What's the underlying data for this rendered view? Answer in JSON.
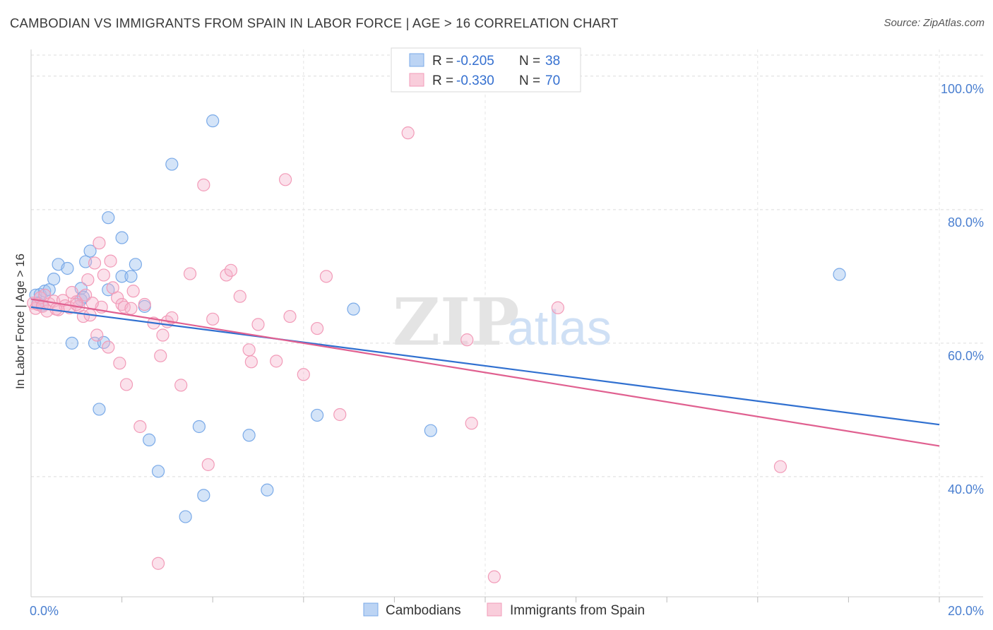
{
  "title": "CAMBODIAN VS IMMIGRANTS FROM SPAIN IN LABOR FORCE | AGE > 16 CORRELATION CHART",
  "source": "Source: ZipAtlas.com",
  "watermark": {
    "zip": "ZIP",
    "atlas": "atlas"
  },
  "legend": {
    "rows": [
      {
        "r_label": "R =",
        "r_value": "-0.205",
        "n_label": "N =",
        "n_value": "38"
      },
      {
        "r_label": "R =",
        "r_value": "-0.330",
        "n_label": "N =",
        "n_value": "70"
      }
    ]
  },
  "chart_data": {
    "type": "scatter",
    "title": "CAMBODIAN VS IMMIGRANTS FROM SPAIN IN LABOR FORCE | AGE > 16 CORRELATION CHART",
    "xlabel": "",
    "ylabel": "In Labor Force | Age > 16",
    "xlim": [
      0,
      20
    ],
    "ylim": [
      22,
      104
    ],
    "x_tick_labels": [
      {
        "value": 0,
        "label": "0.0%"
      },
      {
        "value": 20,
        "label": "20.0%"
      }
    ],
    "y_tick_labels": [
      {
        "value": 40,
        "label": "40.0%"
      },
      {
        "value": 60,
        "label": "60.0%"
      },
      {
        "value": 80,
        "label": "80.0%"
      },
      {
        "value": 100,
        "label": "100.0%"
      }
    ],
    "grid": true,
    "legend_position": "top-center",
    "colors": {
      "cambodians": "#7aaae8",
      "spain": "#f29bb8",
      "cambodians_line": "#3070d0",
      "spain_line": "#e06090"
    },
    "series": [
      {
        "name": "Cambodians",
        "r": -0.205,
        "n": 38,
        "trend": {
          "x0": 0,
          "y0": 65.4,
          "x1": 20,
          "y1": 47.8
        },
        "points": [
          [
            0.1,
            67.2
          ],
          [
            0.2,
            67.3
          ],
          [
            0.3,
            67.8
          ],
          [
            0.4,
            68.0
          ],
          [
            0.5,
            69.6
          ],
          [
            0.6,
            71.8
          ],
          [
            0.8,
            71.2
          ],
          [
            0.9,
            60.0
          ],
          [
            1.1,
            68.2
          ],
          [
            1.1,
            66.5
          ],
          [
            1.2,
            72.2
          ],
          [
            1.3,
            73.8
          ],
          [
            1.4,
            60.0
          ],
          [
            1.5,
            50.1
          ],
          [
            1.6,
            60.1
          ],
          [
            1.7,
            78.8
          ],
          [
            1.7,
            68.0
          ],
          [
            2.0,
            75.8
          ],
          [
            2.0,
            70.0
          ],
          [
            2.2,
            70.0
          ],
          [
            2.3,
            71.8
          ],
          [
            2.5,
            65.5
          ],
          [
            2.6,
            45.5
          ],
          [
            2.8,
            40.8
          ],
          [
            3.1,
            86.8
          ],
          [
            3.4,
            34.0
          ],
          [
            3.7,
            47.5
          ],
          [
            3.8,
            37.2
          ],
          [
            4.0,
            93.3
          ],
          [
            4.8,
            46.2
          ],
          [
            5.2,
            38.0
          ],
          [
            6.3,
            49.2
          ],
          [
            7.1,
            65.1
          ],
          [
            8.8,
            46.9
          ],
          [
            17.8,
            70.3
          ],
          [
            0.15,
            66.0
          ],
          [
            0.25,
            65.7
          ],
          [
            1.15,
            66.9
          ]
        ]
      },
      {
        "name": "Immigrants from Spain",
        "r": -0.33,
        "n": 70,
        "trend": {
          "x0": 0,
          "y0": 66.6,
          "x1": 20,
          "y1": 44.6
        },
        "points": [
          [
            0.05,
            66.0
          ],
          [
            0.1,
            65.2
          ],
          [
            0.15,
            65.8
          ],
          [
            0.2,
            66.8
          ],
          [
            0.25,
            65.5
          ],
          [
            0.3,
            67.2
          ],
          [
            0.35,
            64.8
          ],
          [
            0.4,
            65.9
          ],
          [
            0.5,
            66.3
          ],
          [
            0.6,
            65.0
          ],
          [
            0.7,
            66.4
          ],
          [
            0.75,
            65.6
          ],
          [
            0.85,
            65.3
          ],
          [
            0.9,
            67.6
          ],
          [
            1.0,
            66.2
          ],
          [
            1.05,
            65.5
          ],
          [
            1.15,
            64.0
          ],
          [
            1.2,
            67.2
          ],
          [
            1.25,
            69.5
          ],
          [
            1.3,
            64.2
          ],
          [
            1.4,
            72.0
          ],
          [
            1.45,
            61.2
          ],
          [
            1.5,
            75.0
          ],
          [
            1.55,
            65.4
          ],
          [
            1.6,
            70.2
          ],
          [
            1.7,
            59.4
          ],
          [
            1.75,
            72.3
          ],
          [
            1.8,
            68.3
          ],
          [
            1.9,
            66.8
          ],
          [
            1.95,
            57.0
          ],
          [
            2.0,
            65.8
          ],
          [
            2.05,
            65.4
          ],
          [
            2.1,
            53.8
          ],
          [
            2.2,
            65.2
          ],
          [
            2.25,
            67.8
          ],
          [
            2.4,
            47.5
          ],
          [
            2.5,
            65.8
          ],
          [
            2.7,
            63.0
          ],
          [
            2.85,
            58.1
          ],
          [
            2.9,
            61.2
          ],
          [
            3.0,
            63.2
          ],
          [
            3.1,
            63.8
          ],
          [
            3.3,
            53.7
          ],
          [
            3.5,
            70.4
          ],
          [
            3.8,
            83.7
          ],
          [
            3.9,
            41.8
          ],
          [
            4.0,
            63.6
          ],
          [
            4.3,
            70.2
          ],
          [
            4.4,
            70.9
          ],
          [
            4.6,
            67.0
          ],
          [
            4.8,
            59.0
          ],
          [
            4.85,
            57.2
          ],
          [
            5.0,
            62.8
          ],
          [
            5.4,
            57.3
          ],
          [
            5.6,
            84.5
          ],
          [
            5.7,
            64.0
          ],
          [
            6.0,
            55.3
          ],
          [
            6.3,
            62.2
          ],
          [
            6.5,
            70.0
          ],
          [
            6.8,
            49.3
          ],
          [
            8.3,
            91.5
          ],
          [
            9.6,
            60.5
          ],
          [
            9.7,
            48.0
          ],
          [
            10.2,
            25.0
          ],
          [
            11.6,
            65.3
          ],
          [
            16.5,
            41.5
          ],
          [
            2.8,
            27.0
          ],
          [
            1.0,
            65.8
          ],
          [
            0.55,
            65.1
          ],
          [
            1.35,
            66.0
          ]
        ]
      }
    ]
  },
  "bottom_legend": [
    {
      "label": "Cambodians"
    },
    {
      "label": "Immigrants from Spain"
    }
  ]
}
